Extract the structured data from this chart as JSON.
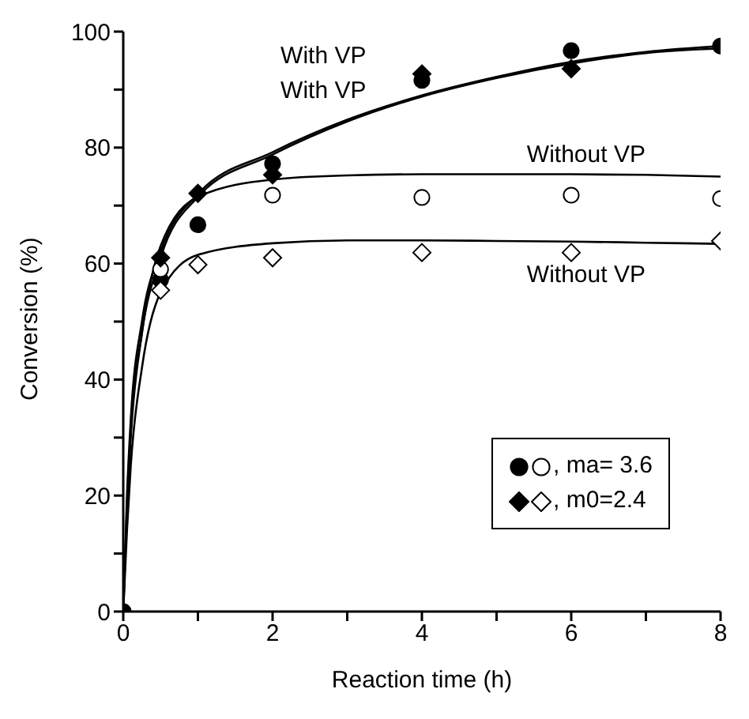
{
  "chart_data": {
    "type": "scatter",
    "xlabel": "Reaction time (h)",
    "ylabel": "Conversion (%)",
    "xlim": [
      0,
      8
    ],
    "ylim": [
      0,
      100
    ],
    "xticks": [
      0,
      {
        "value": 1,
        "label": null
      },
      2,
      {
        "value": 3,
        "label": null
      },
      4,
      {
        "value": 5,
        "label": null
      },
      6,
      {
        "value": 7,
        "label": null
      },
      8
    ],
    "yticks": [
      0,
      {
        "value": 10,
        "label": null
      },
      20,
      {
        "value": 30,
        "label": null
      },
      40,
      {
        "value": 50,
        "label": null
      },
      60,
      {
        "value": 70,
        "label": null
      },
      80,
      {
        "value": 90,
        "label": null
      },
      100
    ],
    "grid": false,
    "legend": "bottom right",
    "series": [
      {
        "marker": "circle",
        "color": "#000000",
        "x": [
          0,
          0.5,
          1,
          2,
          4,
          6,
          8
        ],
        "values": [
          0,
          57.2,
          66.7,
          77.2,
          91.6,
          96.7,
          97.5
        ]
      },
      {
        "name": ", ma= 3.6",
        "marker": "circle",
        "color": "#ffffff",
        "x": [
          0.5,
          1,
          2,
          4,
          6,
          8
        ],
        "values": [
          59,
          null,
          71.8,
          71.4,
          71.8,
          71.2
        ]
      },
      {
        "marker": "diamond",
        "color": "#000000",
        "x": [
          0.5,
          1,
          2,
          4,
          6
        ],
        "values": [
          61,
          72.1,
          75.3,
          92.7,
          93.6
        ]
      },
      {
        "name": ", m0=2.4",
        "marker": "diamond",
        "color": "#ffffff",
        "x": [
          0.5,
          1,
          2,
          4,
          6,
          8
        ],
        "values": [
          55.4,
          59.8,
          61,
          61.9,
          61.9,
          63.9
        ]
      },
      {
        "type": "line",
        "marker": "none",
        "color": "#000000",
        "x": [
          0,
          0.05,
          0.1,
          0.25,
          0.5,
          1,
          2,
          3,
          4,
          5,
          6,
          7,
          8
        ],
        "values": [
          0,
          20,
          33,
          50,
          62,
          72,
          79.2,
          84.8,
          89,
          92.2,
          94.8,
          96.5,
          97.5
        ]
      },
      {
        "type": "line",
        "marker": "none",
        "color": "#000000",
        "x": [
          0.05,
          0.1,
          0.25,
          0.5,
          1,
          2,
          3,
          4,
          5,
          6,
          7,
          8
        ],
        "values": [
          18,
          31,
          48,
          61,
          71.5,
          78.8,
          84.5,
          88.8,
          92,
          94.5,
          96.3,
          97.1
        ]
      },
      {
        "type": "line",
        "marker": "none",
        "color": "#000000",
        "x": [
          0,
          0.05,
          0.1,
          0.25,
          0.5,
          1,
          2,
          3,
          4,
          5,
          6,
          7,
          8
        ],
        "values": [
          0,
          18,
          30,
          48,
          63,
          71.5,
          74.5,
          75.2,
          75.4,
          75.4,
          75.4,
          75.3,
          75
        ]
      },
      {
        "type": "line",
        "marker": "none",
        "color": "#000000",
        "x": [
          0,
          0.05,
          0.1,
          0.25,
          0.5,
          1,
          2,
          3,
          4,
          5,
          6,
          7,
          8
        ],
        "values": [
          0,
          14,
          25,
          42,
          55,
          61.5,
          63.5,
          64,
          64,
          63.9,
          63.8,
          63.6,
          63.4
        ]
      }
    ],
    "annotations": [
      "With VP",
      "With VP",
      "Without VP",
      "Without VP"
    ]
  }
}
